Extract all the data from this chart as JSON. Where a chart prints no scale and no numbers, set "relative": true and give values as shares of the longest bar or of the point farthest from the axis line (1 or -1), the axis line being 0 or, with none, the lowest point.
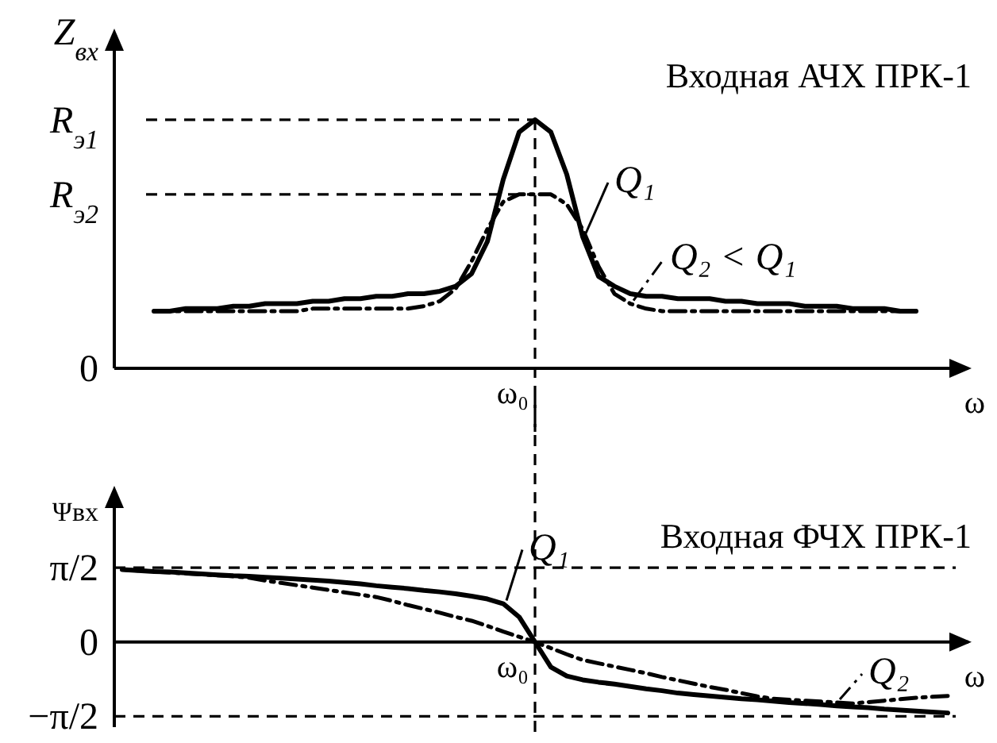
{
  "chart_data": [
    {
      "type": "line",
      "title": "Входная АЧХ ПРК-1",
      "xlabel": "ω",
      "ylabel": "Z$_{вх}$",
      "annotations": [
        "ω₀",
        "0"
      ],
      "relative": true,
      "grid": false,
      "marker": "none",
      "categories": [
        null,
        null,
        null,
        null,
        null,
        null,
        null,
        null,
        null,
        null,
        null,
        null,
        null,
        null,
        null,
        null,
        null,
        null,
        null,
        null,
        null,
        null,
        null,
        null,
        null,
        null,
        null,
        null,
        null,
        null,
        null,
        null,
        null,
        null,
        null,
        null,
        null,
        null,
        null,
        null,
        null,
        null,
        null,
        null,
        null,
        null,
        null,
        null,
        null
      ],
      "ref_lines": [
        {
          "axis": "y",
          "value": 1,
          "label": "R$_{э1}$",
          "line_style": "dashed",
          "color": "#000000"
        },
        {
          "axis": "y",
          "value": 0.7,
          "label": "R$_{э2}$",
          "line_style": "dashed",
          "color": "#000000"
        }
      ],
      "series": [
        {
          "name": "Q₁",
          "color": "#000000",
          "line_style": "solid",
          "values": [
            0.23,
            0.23,
            0.24,
            0.24,
            0.24,
            0.25,
            0.25,
            0.26,
            0.26,
            0.26,
            0.27,
            0.27,
            0.28,
            0.28,
            0.29,
            0.29,
            0.3,
            0.3,
            0.31,
            0.33,
            0.38,
            0.51,
            0.76,
            0.95,
            1.0,
            0.95,
            0.78,
            0.53,
            0.37,
            0.33,
            0.3,
            0.29,
            0.29,
            0.28,
            0.28,
            0.28,
            0.27,
            0.27,
            0.26,
            0.26,
            0.26,
            0.25,
            0.25,
            0.25,
            0.24,
            0.24,
            0.24,
            0.23,
            0.23
          ]
        },
        {
          "name": "Q₂ < Q₁",
          "color": "#000000",
          "line_style": "dashed",
          "values": [
            0.23,
            0.23,
            0.23,
            0.23,
            0.23,
            0.23,
            0.23,
            0.23,
            0.23,
            0.23,
            0.24,
            0.24,
            0.24,
            0.24,
            0.24,
            0.24,
            0.24,
            0.25,
            0.27,
            0.32,
            0.43,
            0.56,
            0.67,
            0.7,
            0.7,
            0.7,
            0.66,
            0.56,
            0.41,
            0.3,
            0.26,
            0.24,
            0.23,
            0.23,
            0.23,
            0.23,
            0.23,
            0.23,
            0.23,
            0.23,
            0.23,
            0.23,
            0.23,
            0.23,
            0.23,
            0.23,
            0.23,
            0.23,
            0.23
          ]
        }
      ]
    },
    {
      "type": "line",
      "title": "Входная ФЧХ ПРК-1",
      "xlabel": "ω",
      "ylabel": "Ψвх",
      "annotations": [
        "ω₀"
      ],
      "ylim": [
        -1.8,
        2.9
      ],
      "yticks": [
        {
          "value": -1.5708,
          "label": "−π/2"
        },
        {
          "value": 0,
          "label": "0"
        },
        {
          "value": 1.5708,
          "label": "π/2"
        }
      ],
      "grid": false,
      "marker": "none",
      "categories": [
        null,
        null,
        null,
        null,
        null,
        null,
        null,
        null,
        null,
        null,
        null,
        null,
        null,
        null,
        null,
        null,
        null,
        null,
        null,
        null,
        null,
        null,
        null,
        null,
        null,
        null,
        null,
        null,
        null,
        null,
        null,
        null,
        null,
        null,
        null,
        null,
        null,
        null,
        null,
        null,
        null,
        null,
        null,
        null,
        null,
        null,
        null,
        null,
        null,
        null,
        null,
        null,
        null
      ],
      "ref_lines": [
        {
          "axis": "y",
          "value": 1.5708,
          "line_style": "dashed",
          "color": "#000000"
        },
        {
          "axis": "y",
          "value": -1.5708,
          "line_style": "dashed",
          "color": "#000000"
        }
      ],
      "series": [
        {
          "name": "Q₁",
          "color": "#000000",
          "line_style": "solid",
          "values": [
            1.53,
            1.51,
            1.49,
            1.48,
            1.46,
            1.44,
            1.42,
            1.4,
            1.39,
            1.37,
            1.35,
            1.33,
            1.31,
            1.29,
            1.26,
            1.23,
            1.19,
            1.16,
            1.13,
            1.09,
            1.06,
            1.02,
            0.97,
            0.91,
            0.81,
            0.53,
            0,
            -0.53,
            -0.72,
            -0.8,
            -0.85,
            -0.89,
            -0.94,
            -0.99,
            -1.03,
            -1.08,
            -1.11,
            -1.14,
            -1.17,
            -1.2,
            -1.22,
            -1.25,
            -1.28,
            -1.3,
            -1.32,
            -1.35,
            -1.37,
            -1.39,
            -1.42,
            -1.44,
            -1.46,
            -1.48,
            -1.5
          ]
        },
        {
          "name": "Q₂",
          "color": "#000000",
          "line_style": "dashed",
          "values": [
            1.53,
            1.51,
            1.49,
            1.47,
            1.45,
            1.43,
            1.41,
            1.39,
            1.36,
            1.3,
            1.25,
            1.2,
            1.15,
            1.1,
            1.05,
            1.0,
            0.95,
            0.87,
            0.78,
            0.7,
            0.62,
            0.53,
            0.45,
            0.34,
            0.22,
            0.11,
            0,
            -0.13,
            -0.26,
            -0.38,
            -0.45,
            -0.52,
            -0.59,
            -0.66,
            -0.74,
            -0.81,
            -0.88,
            -0.95,
            -1.01,
            -1.08,
            -1.15,
            -1.2,
            -1.22,
            -1.24,
            -1.26,
            -1.28,
            -1.3,
            -1.27,
            -1.24,
            -1.21,
            -1.18,
            -1.16,
            -1.14
          ]
        }
      ]
    }
  ]
}
